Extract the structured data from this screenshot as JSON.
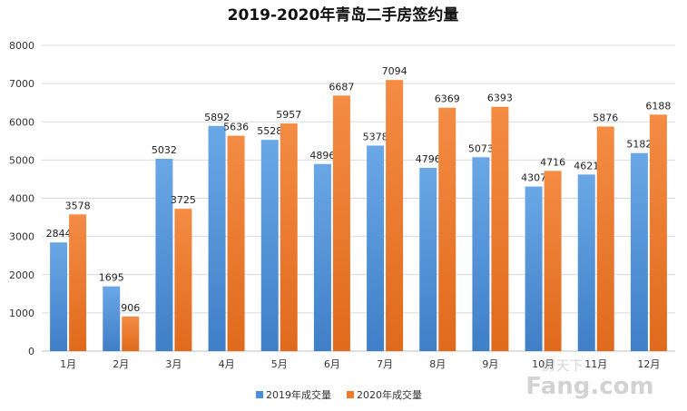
{
  "chart_data": {
    "type": "bar",
    "title": "2019-2020年青岛二手房签约量",
    "categories": [
      "1月",
      "2月",
      "3月",
      "4月",
      "5月",
      "6月",
      "7月",
      "8月",
      "9月",
      "10月",
      "11月",
      "12月"
    ],
    "series": [
      {
        "name": "2019年成交量",
        "values": [
          2844,
          1695,
          5032,
          5892,
          5528,
          4896,
          5378,
          4796,
          5073,
          4307,
          4621,
          5182
        ],
        "color": "#4a8fd7"
      },
      {
        "name": "2020年成交量",
        "values": [
          3578,
          906,
          3725,
          5636,
          5957,
          6687,
          7094,
          6369,
          6393,
          4716,
          5876,
          6188
        ],
        "color": "#ee7a2e"
      }
    ],
    "ylim": [
      0,
      8000
    ],
    "yticks": [
      0,
      1000,
      2000,
      3000,
      4000,
      5000,
      6000,
      7000,
      8000
    ],
    "grid": true,
    "legend": "bottom"
  },
  "watermark": {
    "top": "房天下",
    "bottom": "Fang.com"
  }
}
